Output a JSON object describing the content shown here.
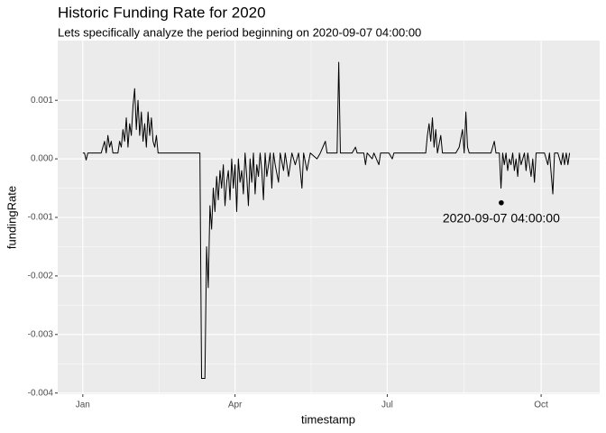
{
  "chart_data": {
    "type": "line",
    "title": "Historic Funding Rate for 2020",
    "subtitle": "Lets specifically analyze the period beginning on 2020-09-07 04:00:00",
    "x_label": "timestamp",
    "y_label": "fundingRate",
    "color": "#000000",
    "x": [
      "2020-01-01",
      "2020-01-02",
      "2020-01-03",
      "2020-01-04",
      "2020-01-08",
      "2020-01-12",
      "2020-01-13",
      "2020-01-14",
      "2020-01-15",
      "2020-01-16",
      "2020-01-17",
      "2020-01-18",
      "2020-01-19",
      "2020-01-20",
      "2020-01-22",
      "2020-01-23",
      "2020-01-24",
      "2020-01-25",
      "2020-01-26",
      "2020-01-27",
      "2020-01-28",
      "2020-01-29",
      "2020-01-30",
      "2020-01-31",
      "2020-02-01",
      "2020-02-02",
      "2020-02-03",
      "2020-02-04",
      "2020-02-05",
      "2020-02-06",
      "2020-02-07",
      "2020-02-08",
      "2020-02-09",
      "2020-02-10",
      "2020-02-11",
      "2020-02-12",
      "2020-02-13",
      "2020-02-14",
      "2020-02-15",
      "2020-02-16",
      "2020-02-20",
      "2020-03-01",
      "2020-03-11",
      "2020-03-12",
      "2020-03-13",
      "2020-03-14",
      "2020-03-15",
      "2020-03-16",
      "2020-03-17",
      "2020-03-18",
      "2020-03-19",
      "2020-03-20",
      "2020-03-21",
      "2020-03-22",
      "2020-03-23",
      "2020-03-24",
      "2020-03-25",
      "2020-03-26",
      "2020-03-27",
      "2020-03-28",
      "2020-03-29",
      "2020-03-30",
      "2020-03-31",
      "2020-04-01",
      "2020-04-02",
      "2020-04-03",
      "2020-04-04",
      "2020-04-05",
      "2020-04-06",
      "2020-04-07",
      "2020-04-08",
      "2020-04-09",
      "2020-04-10",
      "2020-04-11",
      "2020-04-12",
      "2020-04-13",
      "2020-04-14",
      "2020-04-15",
      "2020-04-16",
      "2020-04-17",
      "2020-04-18",
      "2020-04-19",
      "2020-04-20",
      "2020-04-22",
      "2020-04-23",
      "2020-04-24",
      "2020-04-25",
      "2020-04-27",
      "2020-04-28",
      "2020-04-30",
      "2020-05-01",
      "2020-05-03",
      "2020-05-05",
      "2020-05-07",
      "2020-05-09",
      "2020-05-11",
      "2020-05-12",
      "2020-05-14",
      "2020-05-16",
      "2020-05-20",
      "2020-05-22",
      "2020-05-25",
      "2020-05-26",
      "2020-06-01",
      "2020-06-02",
      "2020-06-03",
      "2020-06-10",
      "2020-06-12",
      "2020-06-13",
      "2020-06-17",
      "2020-06-18",
      "2020-06-19",
      "2020-06-22",
      "2020-06-23",
      "2020-06-26",
      "2020-06-27",
      "2020-07-02",
      "2020-07-04",
      "2020-07-05",
      "2020-07-10",
      "2020-07-20",
      "2020-07-24",
      "2020-07-25",
      "2020-07-26",
      "2020-07-27",
      "2020-07-28",
      "2020-07-29",
      "2020-07-30",
      "2020-07-31",
      "2020-08-02",
      "2020-08-03",
      "2020-08-06",
      "2020-08-08",
      "2020-08-11",
      "2020-08-13",
      "2020-08-15",
      "2020-08-16",
      "2020-08-17",
      "2020-08-18",
      "2020-08-19",
      "2020-08-22",
      "2020-08-28",
      "2020-09-01",
      "2020-09-03",
      "2020-09-04",
      "2020-09-06",
      "2020-09-07",
      "2020-09-08",
      "2020-09-09",
      "2020-09-10",
      "2020-09-11",
      "2020-09-12",
      "2020-09-13",
      "2020-09-14",
      "2020-09-15",
      "2020-09-16",
      "2020-09-17",
      "2020-09-18",
      "2020-09-19",
      "2020-09-21",
      "2020-09-22",
      "2020-09-23",
      "2020-09-25",
      "2020-09-26",
      "2020-09-27",
      "2020-09-28",
      "2020-09-30",
      "2020-10-01",
      "2020-10-03",
      "2020-10-05",
      "2020-10-06",
      "2020-10-08",
      "2020-10-09",
      "2020-10-11",
      "2020-10-13",
      "2020-10-14",
      "2020-10-15",
      "2020-10-16",
      "2020-10-17",
      "2020-10-18"
    ],
    "values": [
      0.0001,
      0.0001,
      -2e-05,
      0.0001,
      0.0001,
      0.0001,
      0.0002,
      0.0003,
      0.0001,
      0.0004,
      0.0002,
      0.0003,
      0.0001,
      0.0001,
      0.0001,
      0.0003,
      0.0002,
      0.0005,
      0.0003,
      0.0007,
      0.0002,
      0.0006,
      0.0004,
      0.0009,
      0.0012,
      0.0005,
      0.001,
      0.0004,
      0.0008,
      0.0003,
      0.0006,
      0.0002,
      0.0008,
      0.0004,
      0.0007,
      0.0003,
      0.0002,
      0.0004,
      0.0001,
      0.0001,
      0.0001,
      0.0001,
      0.0001,
      -0.00375,
      -0.00375,
      -0.00375,
      -0.0015,
      -0.0022,
      -0.0008,
      -0.0012,
      -0.0005,
      -0.0009,
      -0.0003,
      -0.0007,
      -0.0002,
      -0.0005,
      -0.0001,
      -0.0008,
      -0.0004,
      -0.0002,
      -0.0007,
      0,
      -0.0005,
      -0.0001,
      -0.0009,
      0,
      -0.0004,
      -0.0002,
      -0.0006,
      0.0001,
      -0.0003,
      -0.0008,
      0,
      -0.0004,
      0.0001,
      -0.0006,
      -0.0001,
      -0.0003,
      0.0001,
      -0.0002,
      -0.0007,
      0.0001,
      -0.0003,
      0.0001,
      -0.0005,
      0.0001,
      -0.0001,
      -0.0004,
      0.0001,
      -0.0002,
      0.0001,
      -0.0003,
      0.0001,
      -0.0001,
      0.0001,
      -0.0005,
      0.0001,
      -0.0002,
      0.0001,
      0,
      0.0001,
      0.0003,
      0.0001,
      0.0001,
      0.00165,
      0.0001,
      0.0001,
      0.0002,
      0.0001,
      0.0001,
      -0.0001,
      0.0001,
      0,
      0.0001,
      -0.0001,
      0.0001,
      0.0001,
      0,
      0.0001,
      0.0001,
      0.0001,
      0.0001,
      0.0004,
      0.0006,
      0.0003,
      0.0007,
      0.0002,
      0.0005,
      0.0001,
      0.0004,
      0.0001,
      0.0001,
      0.0001,
      0.0001,
      0.0002,
      0.0005,
      0.0001,
      0.0008,
      0.0002,
      0.0001,
      0.0001,
      0.0001,
      0.0001,
      0.0003,
      0.0001,
      0.0001,
      -0.0005,
      0.0001,
      -0.0001,
      0.0001,
      -0.0002,
      0,
      -0.0001,
      0.0001,
      -0.0002,
      0,
      -0.0003,
      0.0001,
      -0.0001,
      0.0001,
      -0.0002,
      0.0001,
      -0.0003,
      0,
      -0.0004,
      0.0001,
      0.0001,
      0.0001,
      0.0001,
      -0.0001,
      0.0001,
      -0.0006,
      0.0001,
      0.0001,
      -0.0001,
      0.0001,
      -0.0001,
      0.0001,
      -0.0001,
      0.0001
    ],
    "annotations": [
      {
        "text": "2020-09-07 04:00:00",
        "x": "2020-09-07 04:00:00",
        "y": -0.00075
      }
    ],
    "xlim": [
      "2019-12-17",
      "2020-11-05"
    ],
    "xticks": [
      {
        "value": "2020-01-01",
        "label": "Jan"
      },
      {
        "value": "2020-04-01",
        "label": "Apr"
      },
      {
        "value": "2020-07-01",
        "label": "Jul"
      },
      {
        "value": "2020-10-01",
        "label": "Oct"
      }
    ],
    "ylim": [
      -0.00402,
      0.00202
    ],
    "yticks": [
      -0.004,
      -0.003,
      -0.002,
      -0.001,
      {
        "value": 0,
        "label": "0.000"
      },
      0.001
    ],
    "grid": true
  }
}
